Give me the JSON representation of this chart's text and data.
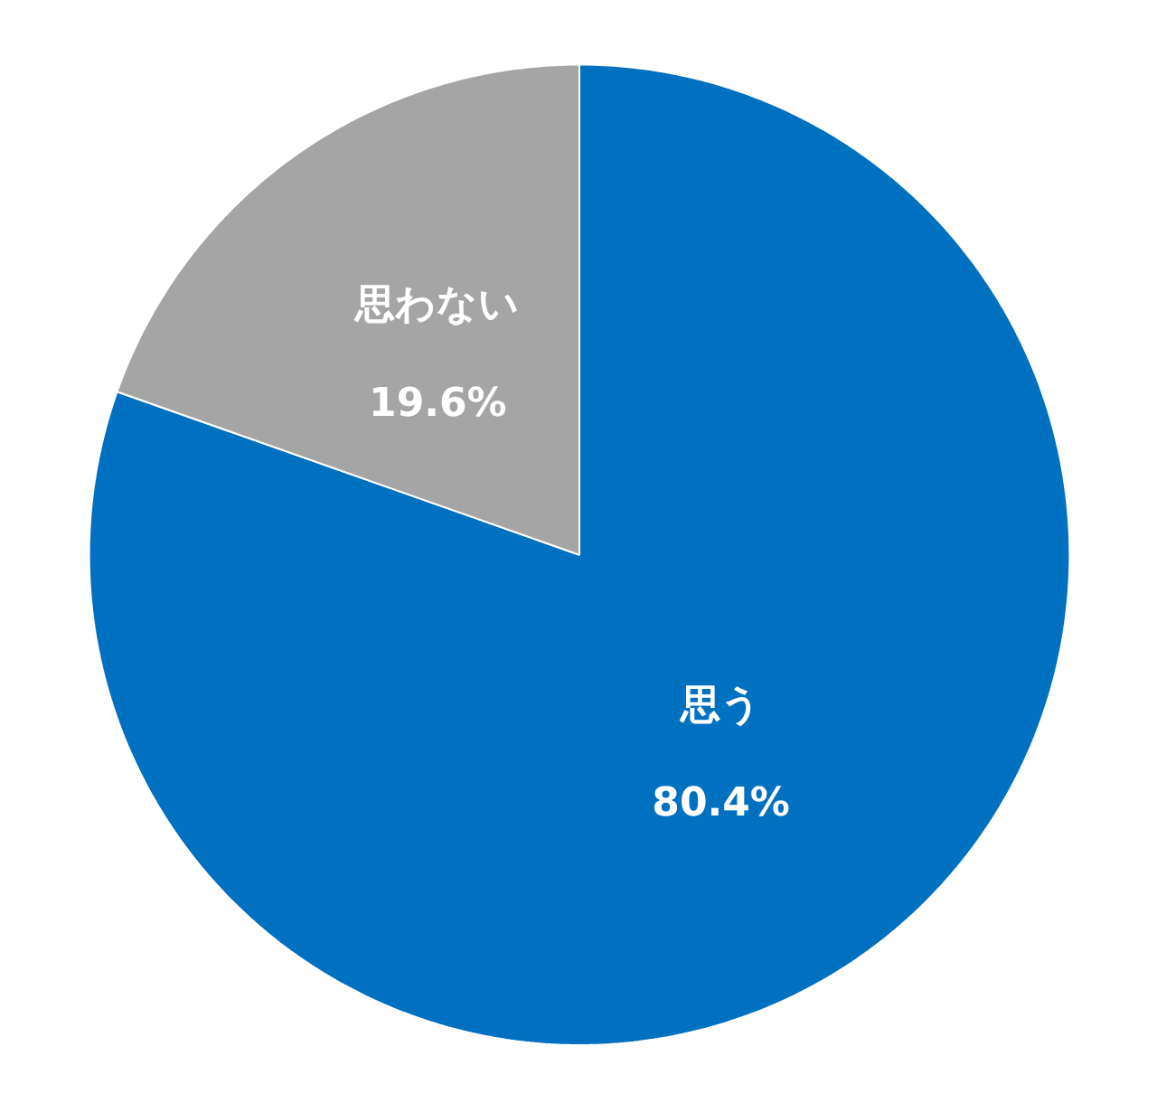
{
  "chart_data": {
    "type": "pie",
    "categories": [
      "思う",
      "思わない"
    ],
    "values": [
      80.4,
      19.6
    ],
    "colors": [
      "#0070c0",
      "#a5a5a5"
    ],
    "value_labels": [
      "80.4%",
      "19.6%"
    ]
  }
}
